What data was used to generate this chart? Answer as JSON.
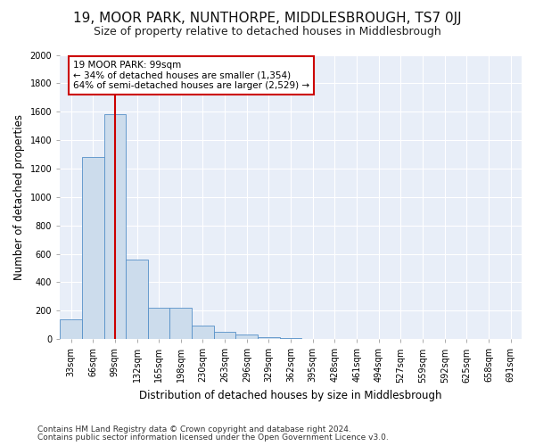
{
  "title": "19, MOOR PARK, NUNTHORPE, MIDDLESBROUGH, TS7 0JJ",
  "subtitle": "Size of property relative to detached houses in Middlesbrough",
  "xlabel": "Distribution of detached houses by size in Middlesbrough",
  "ylabel": "Number of detached properties",
  "footer_line1": "Contains HM Land Registry data © Crown copyright and database right 2024.",
  "footer_line2": "Contains public sector information licensed under the Open Government Licence v3.0.",
  "categories": [
    "33sqm",
    "66sqm",
    "99sqm",
    "132sqm",
    "165sqm",
    "198sqm",
    "230sqm",
    "263sqm",
    "296sqm",
    "329sqm",
    "362sqm",
    "395sqm",
    "428sqm",
    "461sqm",
    "494sqm",
    "527sqm",
    "559sqm",
    "592sqm",
    "625sqm",
    "658sqm",
    "691sqm"
  ],
  "values": [
    140,
    1280,
    1580,
    560,
    220,
    220,
    95,
    50,
    30,
    15,
    8,
    0,
    0,
    0,
    0,
    0,
    0,
    0,
    0,
    0,
    0
  ],
  "bar_color": "#ccdcec",
  "bar_edge_color": "#5590c8",
  "marker_index": 2,
  "marker_color": "#cc0000",
  "annotation_text": "19 MOOR PARK: 99sqm\n← 34% of detached houses are smaller (1,354)\n64% of semi-detached houses are larger (2,529) →",
  "annotation_box_color": "#ffffff",
  "annotation_box_edge_color": "#cc0000",
  "ylim": [
    0,
    2000
  ],
  "yticks": [
    0,
    200,
    400,
    600,
    800,
    1000,
    1200,
    1400,
    1600,
    1800,
    2000
  ],
  "plot_bg_color": "#e8eef8",
  "title_fontsize": 11,
  "subtitle_fontsize": 9,
  "tick_fontsize": 7,
  "axis_label_fontsize": 8.5,
  "footer_fontsize": 6.5
}
